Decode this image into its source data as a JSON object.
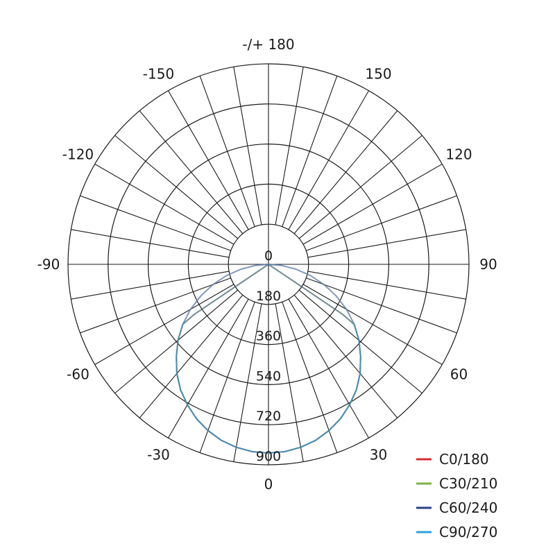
{
  "chart_data": {
    "type": "polar-line",
    "title": "",
    "radial_axis": {
      "range": [
        0,
        900
      ],
      "ticks": [
        0,
        180,
        360,
        540,
        720,
        900
      ],
      "tick_labels": [
        "0",
        "180",
        "360",
        "540",
        "720",
        "900"
      ]
    },
    "angular_axis": {
      "tick_values": [
        180,
        150,
        120,
        90,
        60,
        30,
        0,
        -30,
        -60,
        -90,
        -120,
        -150
      ],
      "tick_labels": [
        "-/+ 180",
        "150",
        "120",
        "90",
        "60",
        "30",
        "0",
        "-30",
        "-60",
        "-90",
        "-120",
        "-150"
      ],
      "grid_step_deg": 10
    },
    "grid": true,
    "legend_position": "bottom-right",
    "series": [
      {
        "name": "C0/180",
        "color": "#d62d2d",
        "gamma": [
          -90,
          -85,
          -80,
          -75,
          -70,
          -65,
          -60,
          -55,
          -50,
          -45,
          -40,
          -35,
          -30,
          -25,
          -20,
          -15,
          -10,
          -5,
          0,
          5,
          10,
          15,
          20,
          25,
          30,
          35,
          40,
          45,
          50,
          55,
          60,
          65,
          70,
          75,
          80,
          85,
          90
        ],
        "values": [
          0,
          60,
          125,
          195,
          265,
          335,
          405,
          470,
          530,
          585,
          640,
          688,
          728,
          765,
          794,
          818,
          834,
          844,
          847,
          844,
          834,
          818,
          794,
          765,
          728,
          688,
          640,
          585,
          530,
          470,
          405,
          335,
          265,
          195,
          125,
          60,
          0
        ]
      },
      {
        "name": "C30/210",
        "color": "#7cb342",
        "gamma": [
          -90,
          -60,
          -57,
          -56,
          -55,
          -50,
          -45,
          -40,
          -35,
          -30,
          -25,
          -20,
          -15,
          -10,
          -5,
          0,
          5,
          10,
          15,
          20,
          25,
          30,
          35,
          40,
          45,
          50,
          55,
          56,
          57,
          60,
          90
        ],
        "values": [
          0,
          0,
          0,
          402,
          470,
          530,
          585,
          640,
          688,
          728,
          765,
          794,
          818,
          834,
          844,
          847,
          844,
          834,
          818,
          794,
          765,
          728,
          688,
          640,
          585,
          530,
          470,
          402,
          0,
          0,
          0
        ]
      },
      {
        "name": "C60/240",
        "color": "#2b3f8c",
        "gamma": [
          -90,
          -60,
          -57,
          -56,
          -55,
          -50,
          -45,
          -40,
          -35,
          -30,
          -25,
          -20,
          -15,
          -10,
          -5,
          0,
          5,
          10,
          15,
          20,
          25,
          30,
          35,
          40,
          45,
          50,
          55,
          56,
          57,
          60,
          90
        ],
        "values": [
          0,
          0,
          0,
          402,
          470,
          530,
          585,
          640,
          688,
          728,
          765,
          794,
          818,
          834,
          844,
          847,
          844,
          834,
          818,
          794,
          765,
          728,
          688,
          640,
          585,
          530,
          470,
          402,
          0,
          0,
          0
        ]
      },
      {
        "name": "C90/270",
        "color": "#2aa3dc",
        "gamma": [
          -90,
          -85,
          -80,
          -75,
          -70,
          -65,
          -60,
          -55,
          -50,
          -45,
          -40,
          -35,
          -30,
          -25,
          -20,
          -15,
          -10,
          -5,
          0,
          5,
          10,
          15,
          20,
          25,
          30,
          35,
          40,
          45,
          50,
          55,
          60,
          65,
          70,
          75,
          80,
          85,
          90
        ],
        "values": [
          0,
          60,
          125,
          195,
          265,
          335,
          405,
          470,
          530,
          585,
          640,
          688,
          728,
          765,
          794,
          818,
          834,
          844,
          847,
          844,
          834,
          818,
          794,
          765,
          728,
          688,
          640,
          585,
          530,
          470,
          405,
          335,
          265,
          195,
          125,
          60,
          0
        ]
      }
    ]
  }
}
